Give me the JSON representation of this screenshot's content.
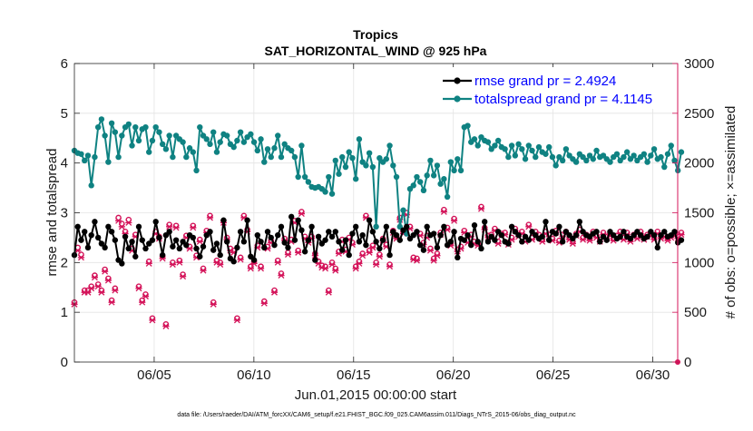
{
  "chart_data": {
    "type": "line",
    "title": "Tropics",
    "subtitle": "SAT_HORIZONTAL_WIND @ 925 hPa",
    "xlabel": "Jun.01,2015 00:00:00 start",
    "ylabel_left": "rmse and totalspread",
    "ylabel_right": "# of obs: o=possible; ×=assimilated",
    "footnote": "data file: /Users/raeder/DAI/ATM_forcXX/CAM6_setup/f.e21.FHIST_BGC.f09_025.CAM6assim.011/Diags_NTrS_2015-06/obs_diag_output.nc",
    "xlim": [
      1,
      31.25
    ],
    "ylim_left": [
      0,
      6
    ],
    "ylim_right": [
      0,
      3000
    ],
    "x_ticks": [
      5,
      10,
      15,
      20,
      25,
      30
    ],
    "x_tick_labels": [
      "06/05",
      "06/10",
      "06/15",
      "06/20",
      "06/25",
      "06/30"
    ],
    "y_left_ticks": [
      "0",
      "1",
      "2",
      "3",
      "4",
      "5",
      "6"
    ],
    "y_right_ticks": [
      "0",
      "500",
      "1000",
      "1500",
      "2000",
      "2500",
      "3000"
    ],
    "colors": {
      "rmse": "#000000",
      "totalspread": "#0f8282",
      "obs": "#d4145a",
      "legend_text": "#0000ff"
    },
    "series": [
      {
        "name": "rmse",
        "legend": "rmse grand pr = 2.4924",
        "values": [
          2.15,
          2.72,
          2.45,
          2.62,
          2.3,
          2.55,
          2.82,
          2.5,
          2.38,
          2.3,
          2.72,
          2.62,
          2.45,
          2.05,
          1.98,
          2.52,
          2.28,
          2.42,
          2.12,
          2.72,
          2.45,
          2.28,
          2.38,
          2.45,
          2.82,
          2.5,
          2.15,
          2.55,
          2.62,
          2.32,
          2.45,
          2.28,
          2.42,
          2.35,
          2.55,
          2.5,
          2.28,
          2.12,
          2.32,
          2.55,
          2.62,
          2.25,
          2.38,
          2.15,
          2.85,
          2.42,
          2.08,
          2.02,
          2.3,
          2.62,
          2.42,
          2.85,
          2.12,
          2.05,
          2.55,
          2.42,
          2.3,
          2.62,
          2.5,
          2.35,
          2.55,
          2.72,
          2.4,
          2.3,
          2.92,
          2.45,
          2.85,
          2.65,
          2.22,
          2.45,
          2.72,
          2.05,
          2.52,
          2.38,
          2.45,
          2.62,
          2.52,
          2.62,
          2.42,
          2.25,
          2.45,
          2.15,
          2.58,
          2.72,
          2.42,
          2.55,
          2.35,
          2.85,
          2.62,
          2.42,
          2.28,
          2.45,
          2.72,
          2.15,
          2.62,
          2.55,
          2.45,
          2.65,
          2.72,
          2.48,
          2.55,
          2.62,
          2.35,
          2.25,
          2.72,
          2.55,
          2.58,
          2.3,
          2.55,
          2.72,
          2.35,
          2.42,
          2.62,
          2.1,
          2.48,
          2.45,
          2.55,
          2.35,
          2.75,
          2.42,
          2.28,
          2.82,
          2.42,
          2.52,
          2.45,
          2.62,
          2.55,
          2.42,
          2.38,
          2.72,
          2.62,
          2.55,
          2.42,
          2.52,
          2.45,
          2.62,
          2.55,
          2.48,
          2.52,
          2.82,
          2.45,
          2.62,
          2.58,
          2.72,
          2.42,
          2.62,
          2.55,
          2.48,
          2.55,
          2.82,
          2.62,
          2.55,
          2.52,
          2.58,
          2.62,
          2.42,
          2.52,
          2.45,
          2.62,
          2.55,
          2.48,
          2.52,
          2.62,
          2.52,
          2.48,
          2.55,
          2.62,
          2.55,
          2.48,
          2.52,
          2.62,
          2.55,
          2.3,
          2.55,
          2.62,
          2.52,
          2.55,
          2.62,
          2.4,
          2.45
        ]
      },
      {
        "name": "totalspread",
        "legend": "totalspread grand pr = 4.1145",
        "values": [
          4.25,
          4.2,
          4.18,
          4.05,
          4.15,
          3.55,
          4.12,
          4.72,
          4.88,
          4.55,
          4.02,
          4.8,
          4.62,
          4.12,
          4.55,
          4.72,
          4.78,
          4.35,
          4.72,
          4.45,
          4.68,
          4.72,
          4.22,
          4.45,
          4.72,
          4.62,
          4.38,
          4.28,
          4.55,
          4.12,
          4.55,
          4.48,
          4.42,
          4.12,
          4.3,
          4.22,
          3.85,
          4.72,
          4.55,
          4.48,
          4.38,
          4.62,
          4.22,
          4.42,
          4.58,
          4.55,
          4.38,
          4.32,
          4.45,
          4.62,
          4.42,
          4.52,
          4.58,
          4.42,
          4.25,
          4.48,
          4.02,
          4.28,
          4.12,
          4.3,
          4.55,
          4.12,
          4.38,
          4.3,
          4.25,
          4.12,
          3.72,
          4.35,
          3.72,
          3.62,
          3.52,
          3.5,
          3.52,
          3.48,
          3.42,
          3.72,
          3.38,
          4.05,
          3.78,
          4.12,
          3.92,
          4.22,
          4.1,
          3.68,
          4.48,
          4.02,
          3.95,
          4.2,
          3.92,
          2.72,
          4.1,
          4.02,
          4.08,
          4.35,
          3.95,
          3.72,
          2.72,
          3.05,
          2.58,
          3.48,
          3.55,
          3.72,
          3.62,
          3.45,
          3.75,
          4.05,
          3.75,
          3.95,
          3.58,
          3.68,
          3.32,
          4.02,
          3.85,
          4.08,
          3.85,
          4.72,
          4.75,
          4.42,
          4.48,
          4.35,
          4.52,
          4.45,
          4.42,
          4.28,
          4.35,
          4.45,
          4.32,
          4.28,
          4.12,
          4.35,
          4.15,
          4.38,
          4.28,
          4.08,
          4.35,
          4.25,
          4.12,
          4.32,
          4.22,
          4.18,
          4.32,
          4.12,
          3.95,
          4.12,
          4.05,
          4.28,
          4.15,
          4.08,
          4.02,
          4.18,
          4.12,
          4.05,
          4.15,
          4.08,
          4.25,
          4.12,
          4.15,
          4.08,
          4.02,
          4.12,
          4.18,
          4.05,
          4.12,
          4.22,
          4.08,
          4.15,
          4.05,
          4.12,
          4.18,
          4.02,
          4.15,
          4.28,
          4.08,
          4.12,
          3.92,
          4.18,
          4.35,
          4.05,
          3.85,
          4.22
        ]
      }
    ],
    "obs_possible": [
      600,
      1150,
      1080,
      720,
      720,
      760,
      870,
      780,
      720,
      930,
      840,
      620,
      740,
      1450,
      1390,
      1310,
      1430,
      1140,
      1280,
      760,
      620,
      680,
      1010,
      440,
      1310,
      1260,
      1060,
      380,
      1380,
      1000,
      1370,
      1020,
      880,
      1270,
      1160,
      1370,
      1070,
      1230,
      940,
      1320,
      1470,
      600,
      1020,
      1000,
      1420,
      1250,
      1140,
      1120,
      440,
      1050,
      1470,
      1330,
      960,
      1010,
      1170,
      960,
      610,
      1160,
      1220,
      720,
      1020,
      890,
      1240,
      1100,
      1230,
      1420,
      1120,
      1510,
      1260,
      1220,
      1260,
      1090,
      1010,
      970,
      960,
      720,
      1000,
      940,
      1110,
      1230,
      1130,
      1250,
      1200,
      960,
      1010,
      1090,
      1470,
      1120,
      1170,
      1000,
      1080,
      1240,
      1180,
      980,
      1320,
      1260,
      1450,
      1310,
      1500,
      1360,
      1050,
      1040,
      1290,
      1200,
      1270,
      1140,
      1040,
      1090,
      1300,
      1530,
      1350,
      1190,
      1440,
      1130,
      1160,
      1320,
      1220,
      1280,
      1210,
      1190,
      1560,
      1350,
      1270,
      1280,
      1340,
      1210,
      1290,
      1300,
      1200,
      1250,
      1340,
      1280,
      1310,
      1230,
      1380,
      1250,
      1310,
      1280,
      1230,
      1310,
      1280,
      1240,
      1320,
      1220,
      1280,
      1310,
      1250,
      1210,
      1290,
      1330,
      1250,
      1280,
      1240,
      1310,
      1270,
      1230,
      1300,
      1260,
      1290,
      1240,
      1270,
      1310,
      1250,
      1300,
      1230,
      1280,
      1260,
      1310,
      1250,
      1280,
      1290,
      1250,
      1310,
      1260,
      1280,
      1240,
      1270,
      1290,
      1260,
      1300
    ],
    "obs_assimilated": [
      580,
      1120,
      1050,
      700,
      700,
      740,
      850,
      760,
      700,
      910,
      820,
      600,
      720,
      1420,
      1360,
      1290,
      1400,
      1120,
      1260,
      740,
      600,
      660,
      990,
      420,
      1290,
      1240,
      1040,
      360,
      1360,
      980,
      1350,
      1000,
      860,
      1250,
      1140,
      1350,
      1050,
      1210,
      920,
      1300,
      1450,
      580,
      1000,
      980,
      1400,
      1230,
      1120,
      1100,
      420,
      1030,
      1450,
      1310,
      940,
      990,
      1150,
      940,
      590,
      1140,
      1200,
      700,
      1000,
      870,
      1220,
      1080,
      1210,
      1400,
      1100,
      1490,
      1240,
      1200,
      1240,
      1070,
      990,
      950,
      940,
      700,
      980,
      920,
      1090,
      1210,
      1110,
      1230,
      1180,
      940,
      990,
      1070,
      1450,
      1100,
      1150,
      980,
      1060,
      1220,
      1160,
      960,
      1300,
      1240,
      1430,
      1290,
      1480,
      1340,
      1030,
      1020,
      1270,
      1180,
      1250,
      1120,
      1020,
      1070,
      1280,
      1510,
      1330,
      1170,
      1420,
      1110,
      1140,
      1300,
      1200,
      1260,
      1190,
      1170,
      1540,
      1330,
      1250,
      1260,
      1320,
      1190,
      1270,
      1280,
      1180,
      1230,
      1320,
      1260,
      1290,
      1210,
      1360,
      1230,
      1290,
      1260,
      1210,
      1290,
      1260,
      1220,
      1300,
      1200,
      1260,
      1290,
      1230,
      1190,
      1270,
      1310,
      1230,
      1260,
      1220,
      1290,
      1250,
      1210,
      1280,
      1240,
      1270,
      1220,
      1250,
      1290,
      1230,
      1280,
      1210,
      1260,
      1240,
      1290,
      1230,
      1260,
      1270,
      1230,
      1290,
      1240,
      1260,
      1220,
      1250,
      1270,
      1240,
      1280
    ]
  }
}
